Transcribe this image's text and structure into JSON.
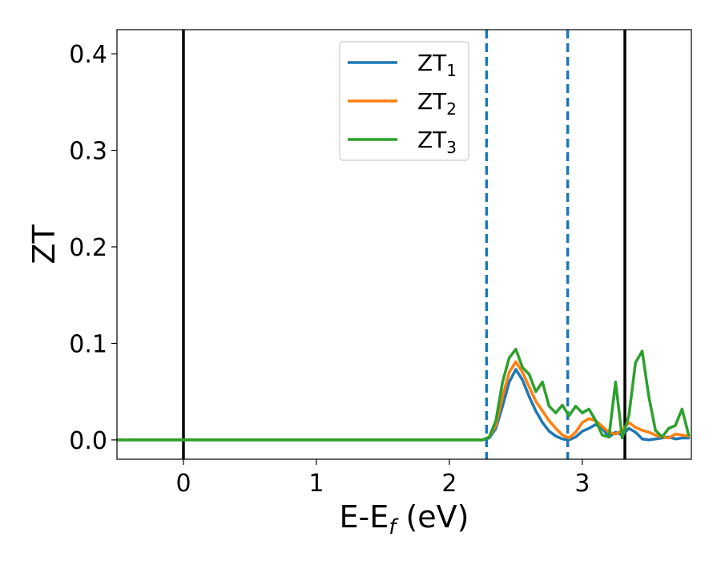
{
  "chart_data": {
    "type": "line",
    "xlabel": "E-E",
    "xlabel_sub": "f",
    "xlabel_unit": " (eV)",
    "ylabel": "ZT",
    "xlim": [
      -0.5,
      3.82
    ],
    "ylim": [
      -0.02,
      0.425
    ],
    "xticks": [
      0,
      1,
      2,
      3
    ],
    "xtick_labels": [
      "0",
      "1",
      "2",
      "3"
    ],
    "yticks": [
      0.0,
      0.1,
      0.2,
      0.3,
      0.4
    ],
    "ytick_labels": [
      "0.0",
      "0.1",
      "0.2",
      "0.3",
      "0.4"
    ],
    "grid": false,
    "legend_position": "top-center",
    "vlines": [
      {
        "x": 0.0,
        "style": "solid",
        "color": "#000000"
      },
      {
        "x": 3.32,
        "style": "solid",
        "color": "#000000"
      },
      {
        "x": 2.28,
        "style": "dashed",
        "color": "#1f77b4"
      },
      {
        "x": 2.89,
        "style": "dashed",
        "color": "#1f77b4"
      }
    ],
    "series": [
      {
        "name": "ZT",
        "sub": "1",
        "color": "#1f77b4",
        "x": [
          -0.5,
          2.25,
          2.3,
          2.35,
          2.4,
          2.45,
          2.5,
          2.55,
          2.6,
          2.65,
          2.7,
          2.75,
          2.8,
          2.85,
          2.9,
          2.95,
          3.0,
          3.05,
          3.1,
          3.15,
          3.2,
          3.25,
          3.3,
          3.35,
          3.4,
          3.45,
          3.5,
          3.55,
          3.6,
          3.65,
          3.7,
          3.75,
          3.8
        ],
        "values": [
          0.0,
          0.0,
          0.002,
          0.012,
          0.035,
          0.06,
          0.073,
          0.062,
          0.045,
          0.03,
          0.018,
          0.009,
          0.004,
          0.001,
          0.0,
          0.003,
          0.009,
          0.012,
          0.016,
          0.012,
          0.003,
          0.008,
          0.005,
          0.012,
          0.008,
          0.001,
          0.0,
          0.001,
          0.002,
          0.003,
          0.001,
          0.002,
          0.002
        ]
      },
      {
        "name": "ZT",
        "sub": "2",
        "color": "#ff7f0e",
        "x": [
          -0.5,
          2.25,
          2.3,
          2.35,
          2.4,
          2.45,
          2.5,
          2.55,
          2.6,
          2.65,
          2.7,
          2.75,
          2.8,
          2.85,
          2.9,
          2.95,
          3.0,
          3.05,
          3.1,
          3.15,
          3.2,
          3.25,
          3.3,
          3.35,
          3.4,
          3.45,
          3.5,
          3.55,
          3.6,
          3.65,
          3.7,
          3.75,
          3.8
        ],
        "values": [
          0.0,
          0.0,
          0.003,
          0.015,
          0.045,
          0.07,
          0.081,
          0.07,
          0.055,
          0.04,
          0.03,
          0.02,
          0.012,
          0.005,
          0.002,
          0.008,
          0.018,
          0.022,
          0.02,
          0.014,
          0.008,
          0.006,
          0.01,
          0.018,
          0.013,
          0.01,
          0.008,
          0.005,
          0.003,
          0.002,
          0.006,
          0.005,
          0.004
        ]
      },
      {
        "name": "ZT",
        "sub": "3",
        "color": "#2ca02c",
        "x": [
          -0.5,
          2.25,
          2.3,
          2.35,
          2.4,
          2.45,
          2.5,
          2.55,
          2.6,
          2.65,
          2.7,
          2.75,
          2.8,
          2.85,
          2.9,
          2.95,
          3.0,
          3.05,
          3.1,
          3.15,
          3.2,
          3.25,
          3.3,
          3.35,
          3.4,
          3.45,
          3.5,
          3.55,
          3.6,
          3.65,
          3.7,
          3.75,
          3.8
        ],
        "values": [
          0.0,
          0.0,
          0.003,
          0.02,
          0.06,
          0.085,
          0.094,
          0.075,
          0.068,
          0.05,
          0.06,
          0.035,
          0.028,
          0.036,
          0.025,
          0.035,
          0.028,
          0.032,
          0.02,
          0.005,
          0.003,
          0.06,
          0.002,
          0.025,
          0.08,
          0.092,
          0.045,
          0.01,
          0.003,
          0.012,
          0.015,
          0.032,
          0.005
        ]
      }
    ]
  }
}
